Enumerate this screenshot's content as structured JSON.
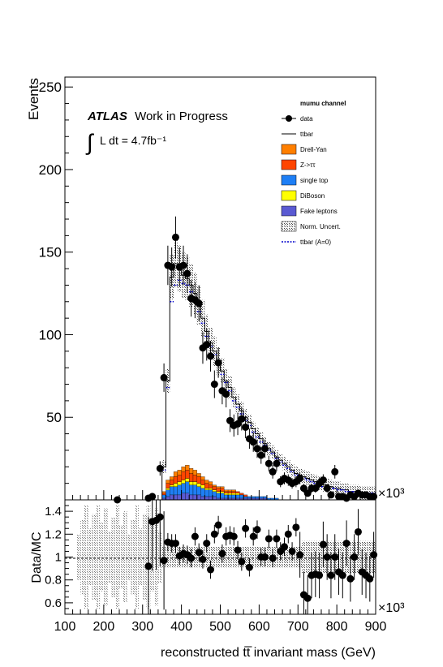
{
  "chart_data": [
    {
      "type": "stacked-histogram",
      "panel": "main",
      "ylabel": "Events",
      "ylim": [
        0,
        256
      ],
      "yticks": [
        50,
        100,
        150,
        200,
        250
      ],
      "xlim": [
        100,
        900
      ],
      "x_exponent_label": "×10³",
      "atlas_label": "ATLAS",
      "atlas_sublabel": "Work in Progress",
      "lumi_label": "L dt = 4.7fb⁻¹",
      "integral_symbol": "∫",
      "channel": "mumu channel",
      "legend": [
        {
          "label": "data",
          "style": "marker",
          "color": "#000000"
        },
        {
          "label": "ttbar",
          "style": "line",
          "color": "#000000"
        },
        {
          "label": "Drell-Yan",
          "style": "box",
          "color": "#ff7f00"
        },
        {
          "label": "Z->ττ",
          "style": "box",
          "color": "#ff4500"
        },
        {
          "label": "single top",
          "style": "box",
          "color": "#1e7ff5"
        },
        {
          "label": "DiBoson",
          "style": "box",
          "color": "#ffff00"
        },
        {
          "label": "Fake leptons",
          "style": "box",
          "color": "#5a5ad2"
        },
        {
          "label": "Norm. Uncert.",
          "style": "hatch",
          "color": "#555555"
        },
        {
          "label": "ttbar (A=0)",
          "style": "dashed",
          "color": "#0000cc"
        }
      ],
      "bin_width": 10,
      "bins_x": [
        350,
        360,
        370,
        380,
        390,
        400,
        410,
        420,
        430,
        440,
        450,
        460,
        470,
        480,
        490,
        500,
        510,
        520,
        530,
        540,
        550,
        560,
        570,
        580,
        590,
        600,
        610,
        620,
        630,
        640,
        650,
        660,
        670,
        680,
        690,
        700,
        710,
        720,
        730,
        740,
        750,
        760,
        770,
        780,
        790,
        800,
        810,
        820,
        830,
        840,
        850,
        860,
        870,
        880,
        890
      ],
      "ttbar_total": [
        20,
        72,
        135,
        143,
        140,
        136,
        134,
        130,
        125,
        118,
        110,
        102,
        95,
        90,
        84,
        78,
        72,
        68,
        62,
        58,
        54,
        50,
        47,
        43,
        40,
        37,
        34,
        31,
        29,
        26,
        24,
        22,
        20,
        18,
        16,
        15,
        14,
        13,
        12,
        11,
        10,
        9,
        9,
        8,
        7,
        7,
        6,
        6,
        5,
        5,
        5,
        4,
        4,
        4,
        4
      ],
      "ttbar_A0": [
        18,
        68,
        120,
        130,
        133,
        131,
        130,
        126,
        121,
        114,
        107,
        99,
        93,
        88,
        82,
        76,
        71,
        66,
        60,
        56,
        52,
        48,
        45,
        41,
        38,
        35,
        33,
        30,
        28,
        25,
        23,
        21,
        19,
        17,
        15,
        14,
        13,
        12,
        11,
        10,
        9,
        8,
        8,
        7,
        7,
        6,
        6,
        5,
        5,
        5,
        4,
        4,
        4,
        4,
        4
      ],
      "stack_fake": [
        1,
        2,
        3,
        3,
        3,
        4,
        4,
        3,
        3,
        3,
        2,
        2,
        2,
        2,
        1,
        1,
        1,
        1,
        1,
        1,
        1,
        1,
        1,
        1,
        1,
        1,
        1,
        0,
        0,
        0,
        0,
        0,
        0,
        0,
        0,
        0,
        0,
        0,
        0,
        0,
        0,
        0,
        0,
        0,
        0,
        0,
        0,
        0,
        0,
        0,
        0,
        0,
        0,
        0,
        0
      ],
      "stack_single_top": [
        2,
        4,
        5,
        5,
        6,
        6,
        7,
        6,
        6,
        5,
        5,
        4,
        4,
        3,
        3,
        3,
        2,
        2,
        2,
        2,
        2,
        1,
        1,
        1,
        1,
        1,
        1,
        1,
        1,
        1,
        0,
        0,
        0,
        0,
        0,
        0,
        0,
        0,
        0,
        0,
        0,
        0,
        0,
        0,
        0,
        0,
        0,
        0,
        0,
        0,
        0,
        0,
        0,
        0,
        0
      ],
      "stack_diboson": [
        0,
        1,
        1,
        2,
        2,
        2,
        2,
        2,
        2,
        2,
        2,
        1,
        1,
        1,
        1,
        1,
        1,
        1,
        1,
        1,
        0,
        0,
        0,
        0,
        0,
        0,
        0,
        0,
        0,
        0,
        0,
        0,
        0,
        0,
        0,
        0,
        0,
        0,
        0,
        0,
        0,
        0,
        0,
        0,
        0,
        0,
        0,
        0,
        0,
        0,
        0,
        0,
        0,
        0,
        0
      ],
      "stack_ztautau": [
        1,
        3,
        3,
        4,
        4,
        5,
        5,
        5,
        4,
        4,
        3,
        3,
        2,
        2,
        2,
        2,
        1,
        1,
        1,
        1,
        1,
        1,
        0,
        0,
        0,
        0,
        0,
        0,
        0,
        0,
        0,
        0,
        0,
        0,
        0,
        0,
        0,
        0,
        0,
        0,
        0,
        0,
        0,
        0,
        0,
        0,
        0,
        0,
        0,
        0,
        0,
        0,
        0,
        0,
        0
      ],
      "stack_drellyan": [
        1,
        2,
        2,
        3,
        3,
        3,
        3,
        3,
        3,
        2,
        2,
        2,
        2,
        1,
        1,
        1,
        1,
        1,
        1,
        0,
        0,
        0,
        0,
        0,
        0,
        0,
        0,
        0,
        0,
        0,
        0,
        0,
        0,
        0,
        0,
        0,
        0,
        0,
        0,
        0,
        0,
        0,
        0,
        0,
        0,
        0,
        0,
        0,
        0,
        0,
        0,
        0,
        0,
        0,
        0
      ],
      "data_x": [
        235,
        315,
        325,
        345,
        355,
        365,
        375,
        385,
        395,
        405,
        415,
        425,
        435,
        445,
        455,
        465,
        475,
        485,
        495,
        505,
        515,
        525,
        535,
        545,
        555,
        565,
        575,
        585,
        595,
        605,
        615,
        625,
        635,
        645,
        655,
        665,
        675,
        685,
        695,
        705,
        715,
        725,
        735,
        745,
        755,
        765,
        775,
        785,
        795,
        805,
        815,
        825,
        835,
        845,
        855,
        865,
        875,
        885,
        895
      ],
      "data_y": [
        0,
        1,
        2,
        19,
        74,
        142,
        141,
        159,
        141,
        142,
        137,
        122,
        121,
        119,
        92,
        94,
        87,
        70,
        83,
        66,
        64,
        48,
        45,
        46,
        49,
        44,
        37,
        35,
        31,
        27,
        31,
        22,
        17,
        22,
        11,
        13,
        12,
        10,
        11,
        13,
        7,
        4,
        7,
        7,
        10,
        12,
        7,
        3,
        17,
        2,
        2,
        1,
        3,
        2,
        4,
        3,
        3,
        2,
        2
      ]
    },
    {
      "type": "scatter",
      "panel": "ratio",
      "ylabel": "Data/MC",
      "xlabel": "reconstructed tt̅ invariant mass (GeV)",
      "xlim": [
        100,
        900
      ],
      "xticks": [
        100,
        200,
        300,
        400,
        500,
        600,
        700,
        800,
        900
      ],
      "ylim": [
        0.5,
        1.5
      ],
      "yticks": [
        0.6,
        0.8,
        1,
        1.2,
        1.4
      ],
      "ytick_labels": [
        "0.6",
        "0.8",
        "1",
        "1.2",
        "1.4"
      ],
      "x_exponent_label": "×10³",
      "reference_line": 1,
      "ratio_x": [
        315,
        325,
        335,
        345,
        355,
        365,
        375,
        385,
        395,
        405,
        415,
        425,
        435,
        445,
        455,
        465,
        475,
        485,
        495,
        505,
        515,
        525,
        535,
        545,
        555,
        565,
        575,
        585,
        595,
        605,
        615,
        625,
        635,
        645,
        655,
        665,
        675,
        685,
        695,
        705,
        715,
        725,
        735,
        745,
        755,
        765,
        775,
        785,
        795,
        805,
        815,
        825,
        835,
        845,
        855,
        865,
        875,
        885,
        895
      ],
      "ratio_y": [
        0.92,
        1.31,
        1.32,
        1.35,
        0.97,
        1.13,
        1.12,
        1.12,
        1.01,
        1.03,
        1.02,
        0.99,
        1.18,
        1.04,
        0.98,
        1.12,
        0.89,
        1.2,
        1.28,
        1.03,
        1.18,
        1.19,
        1.18,
        1.06,
        0.96,
        1.25,
        0.91,
        1.18,
        1.24,
        1.0,
        1.0,
        1.16,
        0.99,
        1.16,
        1.05,
        1.09,
        1.2,
        1.05,
        1.26,
        1.02,
        0.67,
        0.64,
        0.84,
        0.85,
        0.84,
        1.11,
        1.0,
        0.84,
        1.0,
        0.87,
        0.84,
        1.12,
        0.81,
        1.0,
        1.22,
        0.87,
        0.84,
        0.81,
        1.02
      ]
    }
  ]
}
